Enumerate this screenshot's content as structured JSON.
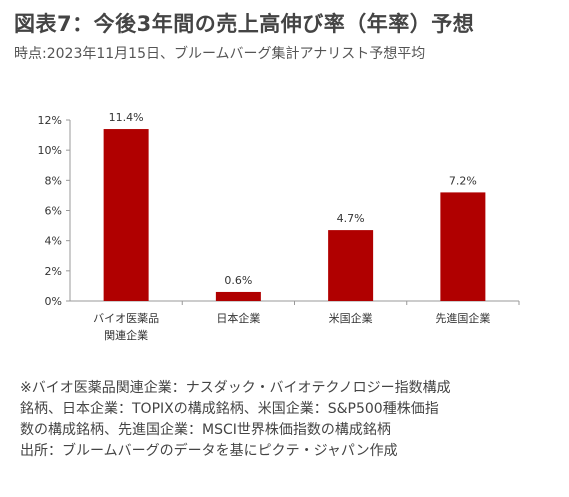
{
  "header": {
    "title": "図表7：今後3年間の売上高伸び率（年率）予想",
    "subtitle": "時点:2023年11月15日、ブルームバーグ集計アナリスト予想平均"
  },
  "chart_data": {
    "type": "bar",
    "categories": [
      [
        "バイオ医薬品",
        "関連企業"
      ],
      [
        "日本企業"
      ],
      [
        "米国企業"
      ],
      [
        "先進国企業"
      ]
    ],
    "values": [
      11.4,
      0.6,
      4.7,
      7.2
    ],
    "data_labels": [
      "11.4%",
      "0.6%",
      "4.7%",
      "7.2%"
    ],
    "yticks": [
      "0%",
      "2%",
      "4%",
      "6%",
      "8%",
      "10%",
      "12%"
    ],
    "ylim": [
      0,
      12
    ],
    "bar_color": "#b00000",
    "grid": false,
    "legend": "none"
  },
  "notes": [
    "※バイオ医薬品関連企業：ナスダック・バイオテクノロジー指数構成",
    "銘柄、日本企業：TOPIXの構成銘柄、米国企業：S&P500種株価指",
    "数の構成銘柄、先進国企業：MSCI世界株価指数の構成銘柄",
    "出所：ブルームバーグのデータを基にピクテ・ジャパン作成"
  ]
}
